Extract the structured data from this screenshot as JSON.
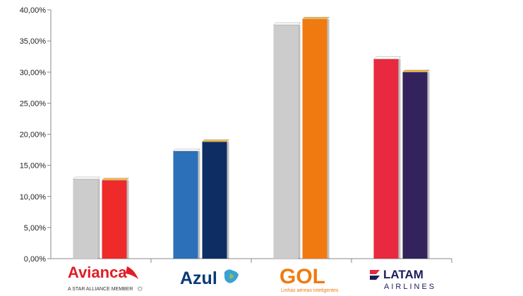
{
  "chart_data": {
    "type": "bar",
    "categories": [
      "Avianca",
      "Azul",
      "GOL",
      "LATAM"
    ],
    "series": [
      {
        "values": [
          12.8,
          17.3,
          37.6,
          32.1
        ]
      },
      {
        "values": [
          12.6,
          18.8,
          38.5,
          30.0
        ]
      }
    ],
    "bar_colors": [
      [
        "#cccccc",
        "#ee2a2a"
      ],
      [
        "#2b70b8",
        "#0e2e63"
      ],
      [
        "#cccccc",
        "#f07a10"
      ],
      [
        "#e8293f",
        "#33225c"
      ]
    ],
    "y_ticks": [
      "0,00%",
      "5,00%",
      "10,00%",
      "15,00%",
      "20,00%",
      "25,00%",
      "30,00%",
      "35,00%",
      "40,00%"
    ],
    "ylim": [
      0,
      40
    ],
    "grid": false,
    "title": "",
    "xlabel": "",
    "ylabel": ""
  },
  "logos": {
    "avianca": {
      "name": "Avianca",
      "tagline": "A STAR ALLIANCE MEMBER",
      "color": "#e01e26"
    },
    "azul": {
      "name": "Azul",
      "color": "#0b3a75"
    },
    "gol": {
      "name": "GOL",
      "tagline": "Linhas aéreas inteligentes",
      "color": "#f07a10"
    },
    "latam": {
      "name": "LATAM",
      "sub": "AIRLINES",
      "color": "#1d1d5c"
    }
  }
}
